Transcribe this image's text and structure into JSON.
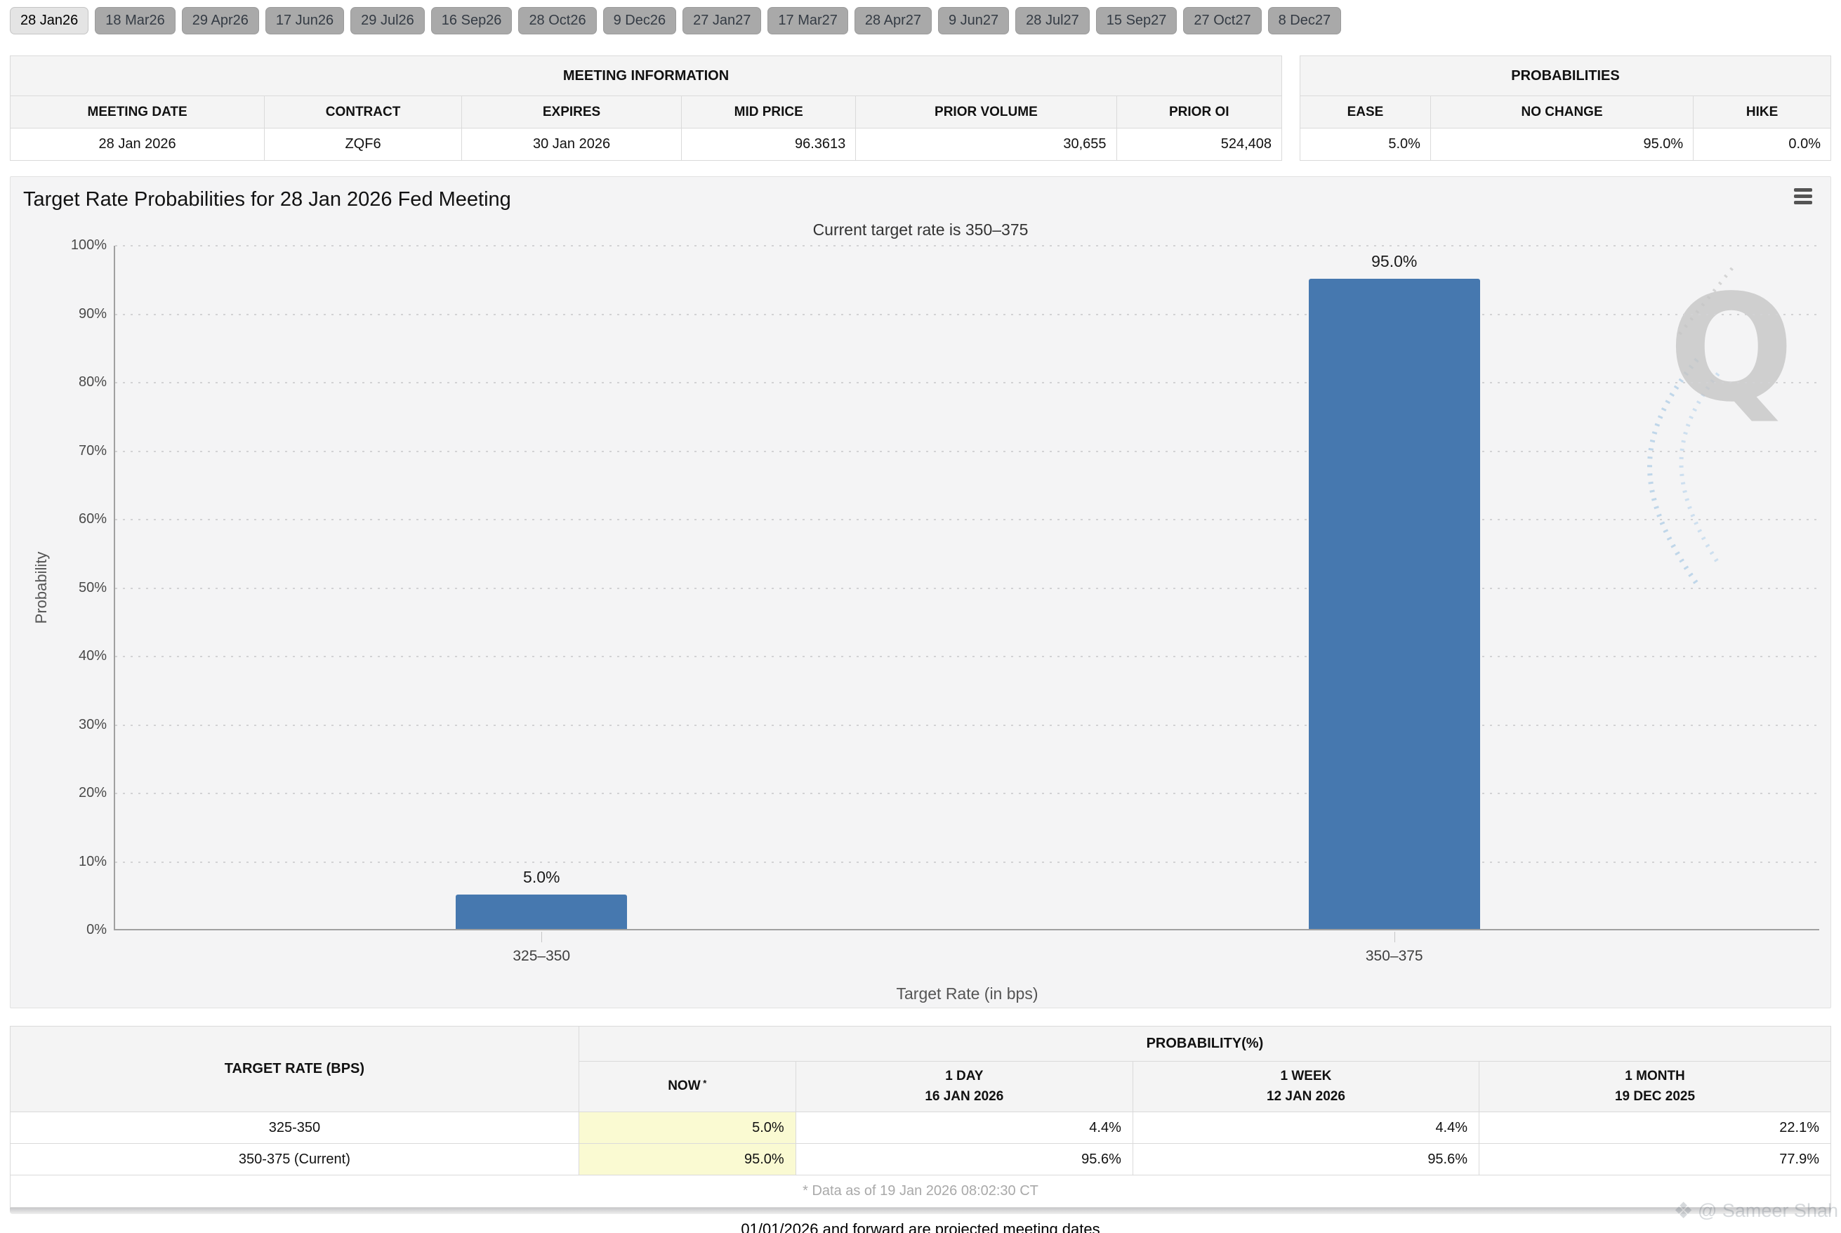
{
  "tabs": {
    "selected_index": 0,
    "items": [
      "28 Jan26",
      "18 Mar26",
      "29 Apr26",
      "17 Jun26",
      "29 Jul26",
      "16 Sep26",
      "28 Oct26",
      "9 Dec26",
      "27 Jan27",
      "17 Mar27",
      "28 Apr27",
      "9 Jun27",
      "28 Jul27",
      "15 Sep27",
      "27 Oct27",
      "8 Dec27"
    ]
  },
  "meeting_info": {
    "title": "MEETING INFORMATION",
    "columns": [
      "MEETING DATE",
      "CONTRACT",
      "EXPIRES",
      "MID PRICE",
      "PRIOR VOLUME",
      "PRIOR OI"
    ],
    "row": [
      "28 Jan 2026",
      "ZQF6",
      "30 Jan 2026",
      "96.3613",
      "30,655",
      "524,408"
    ]
  },
  "probabilities_info": {
    "title": "PROBABILITIES",
    "columns": [
      "EASE",
      "NO CHANGE",
      "HIKE"
    ],
    "row": [
      "5.0%",
      "95.0%",
      "0.0%"
    ]
  },
  "chart": {
    "title": "Target Rate Probabilities for 28 Jan 2026 Fed Meeting",
    "subtitle": "Current target rate is 350–375",
    "watermark_letter": "Q"
  },
  "chart_data": {
    "type": "bar",
    "title": "Target Rate Probabilities for 28 Jan 2026 Fed Meeting",
    "subtitle": "Current target rate is 350–375",
    "categories": [
      "325–350",
      "350–375"
    ],
    "values": [
      5.0,
      95.0
    ],
    "bar_labels": [
      "5.0%",
      "95.0%"
    ],
    "xlabel": "Target Rate (in bps)",
    "ylabel": "Probability",
    "ylim": [
      0,
      100
    ],
    "ytick_step": 10,
    "ytick_suffix": "%",
    "grid": "dotted-horizontal",
    "legend": "none",
    "bar_color": "#4678af"
  },
  "bottom_table": {
    "col1_header": "TARGET RATE (BPS)",
    "group_header": "PROBABILITY(%)",
    "sub_headers": [
      {
        "line1": "NOW",
        "sup": "*",
        "line2": ""
      },
      {
        "line1": "1 DAY",
        "line2": "16 JAN 2026"
      },
      {
        "line1": "1 WEEK",
        "line2": "12 JAN 2026"
      },
      {
        "line1": "1 MONTH",
        "line2": "19 DEC 2025"
      }
    ],
    "rows": [
      {
        "rate": "325-350",
        "now": "5.0%",
        "day": "4.4%",
        "week": "4.4%",
        "month": "22.1%"
      },
      {
        "rate": "350-375 (Current)",
        "now": "95.0%",
        "day": "95.6%",
        "week": "95.6%",
        "month": "77.9%"
      }
    ],
    "footnote": "* Data as of 19 Jan 2026 08:02:30 CT"
  },
  "bottom_note": "01/01/2026 and forward are projected meeting dates",
  "credit_watermark": "@ Sameer Shah",
  "colors": {
    "bar": "#4678af",
    "now_highlight": "#fafad2",
    "tab_selected_bg": "#e4e4e4",
    "tab_bg": "#a9a9a9",
    "header_bg": "#f4f4f4",
    "chart_bg": "#f4f4f5",
    "grid_dot": "#d2d2d4"
  }
}
